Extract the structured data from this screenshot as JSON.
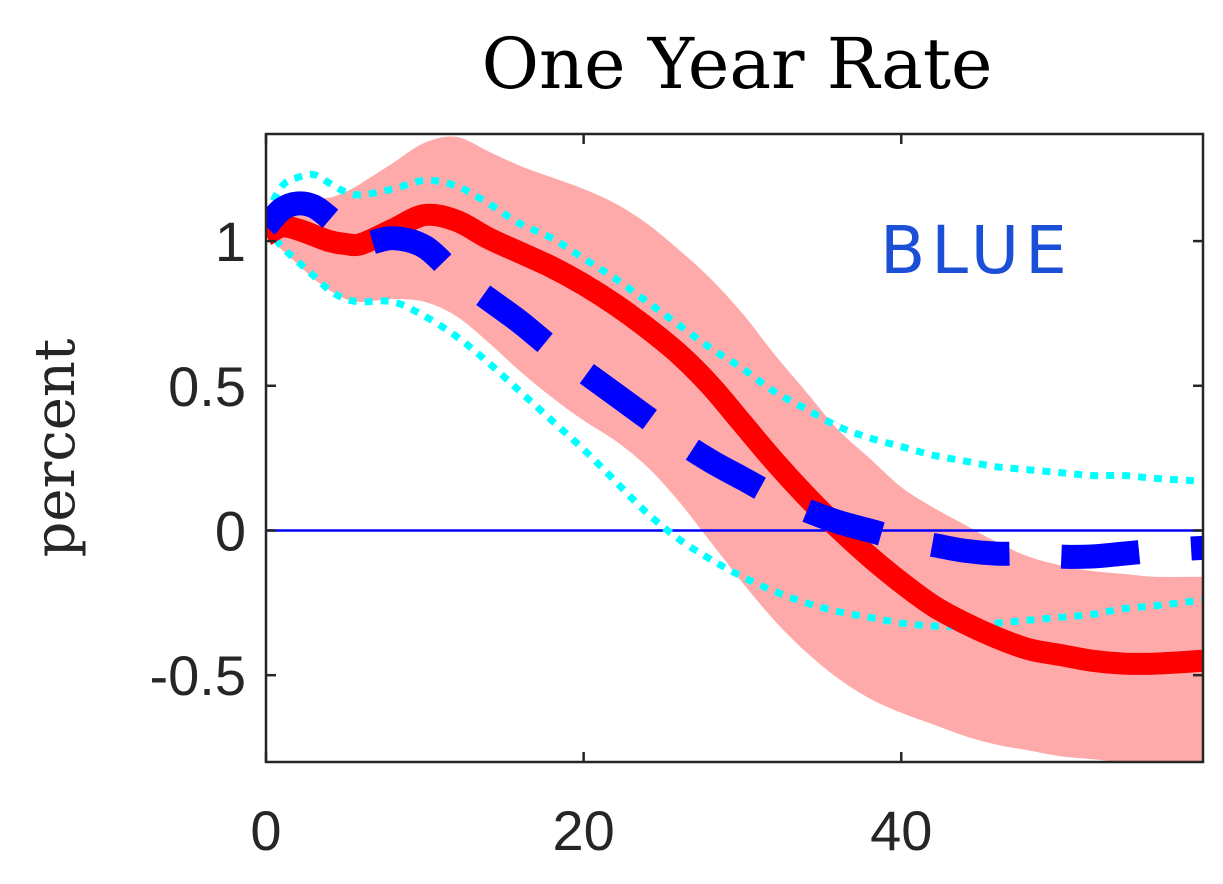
{
  "chart_data": {
    "type": "line",
    "title": "One Year Rate",
    "xlabel": "",
    "ylabel": "percent",
    "xlim": [
      0,
      59
    ],
    "ylim": [
      -0.8,
      1.37
    ],
    "xticks": [
      0,
      20,
      40
    ],
    "xtick_labels": [
      "0",
      "20",
      "40"
    ],
    "yticks": [
      -0.5,
      0,
      0.5,
      1
    ],
    "ytick_labels": [
      "-0.5",
      "0",
      "0.5",
      "1"
    ],
    "grid": false,
    "legend": "none",
    "annotation": "BLUE",
    "zero_line": 0,
    "x": [
      0,
      1,
      2,
      3,
      4,
      5,
      6,
      8,
      10,
      12,
      14,
      16,
      18,
      20,
      22,
      24,
      26,
      28,
      30,
      32,
      34,
      36,
      38,
      40,
      42,
      44,
      46,
      48,
      50,
      52,
      54,
      56,
      59
    ],
    "series": [
      {
        "style": "solid-thick",
        "color": "#ff0000",
        "values": [
          1.02,
          1.05,
          1.04,
          1.02,
          1.0,
          0.99,
          0.99,
          1.04,
          1.09,
          1.07,
          1.01,
          0.96,
          0.91,
          0.85,
          0.78,
          0.7,
          0.61,
          0.5,
          0.37,
          0.24,
          0.12,
          0.01,
          -0.09,
          -0.18,
          -0.26,
          -0.32,
          -0.37,
          -0.41,
          -0.43,
          -0.45,
          -0.46,
          -0.46,
          -0.45
        ]
      },
      {
        "style": "band",
        "color": "#ffaaaa",
        "upper": [
          1.02,
          1.14,
          1.15,
          1.15,
          1.15,
          1.17,
          1.2,
          1.27,
          1.34,
          1.36,
          1.31,
          1.26,
          1.22,
          1.18,
          1.13,
          1.06,
          0.97,
          0.87,
          0.75,
          0.61,
          0.48,
          0.35,
          0.25,
          0.15,
          0.08,
          0.02,
          -0.04,
          -0.09,
          -0.12,
          -0.14,
          -0.15,
          -0.16,
          -0.16
        ],
        "lower": [
          1.02,
          0.97,
          0.92,
          0.87,
          0.83,
          0.8,
          0.79,
          0.8,
          0.79,
          0.74,
          0.65,
          0.55,
          0.46,
          0.38,
          0.31,
          0.22,
          0.1,
          -0.04,
          -0.18,
          -0.31,
          -0.42,
          -0.51,
          -0.58,
          -0.63,
          -0.67,
          -0.71,
          -0.74,
          -0.76,
          -0.78,
          -0.79,
          -0.8,
          -0.8,
          -0.8
        ]
      },
      {
        "style": "dashed-thick",
        "color": "#0000ff",
        "values": [
          1.05,
          1.11,
          1.13,
          1.12,
          1.08,
          1.03,
          0.99,
          1.01,
          0.98,
          0.88,
          0.8,
          0.72,
          0.63,
          0.55,
          0.47,
          0.39,
          0.31,
          0.24,
          0.18,
          0.12,
          0.07,
          0.03,
          0.0,
          -0.03,
          -0.05,
          -0.07,
          -0.08,
          -0.08,
          -0.09,
          -0.09,
          -0.08,
          -0.07,
          -0.06
        ]
      },
      {
        "style": "dotted",
        "color": "#00ffff",
        "values": [
          1.09,
          1.19,
          1.22,
          1.23,
          1.2,
          1.17,
          1.16,
          1.18,
          1.21,
          1.19,
          1.13,
          1.06,
          1.01,
          0.94,
          0.87,
          0.79,
          0.71,
          0.63,
          0.56,
          0.48,
          0.42,
          0.36,
          0.32,
          0.29,
          0.26,
          0.24,
          0.22,
          0.21,
          0.2,
          0.19,
          0.19,
          0.18,
          0.17
        ]
      },
      {
        "style": "dotted",
        "color": "#00ffff",
        "values": [
          1.05,
          0.98,
          0.93,
          0.88,
          0.83,
          0.8,
          0.79,
          0.79,
          0.74,
          0.67,
          0.58,
          0.48,
          0.38,
          0.28,
          0.17,
          0.06,
          -0.03,
          -0.1,
          -0.16,
          -0.21,
          -0.25,
          -0.28,
          -0.3,
          -0.32,
          -0.33,
          -0.33,
          -0.32,
          -0.31,
          -0.3,
          -0.29,
          -0.27,
          -0.26,
          -0.24
        ]
      }
    ]
  },
  "colors": {
    "axis": "#262626",
    "zero_line": "#0000ff",
    "annotation": "#1a4fd6"
  }
}
